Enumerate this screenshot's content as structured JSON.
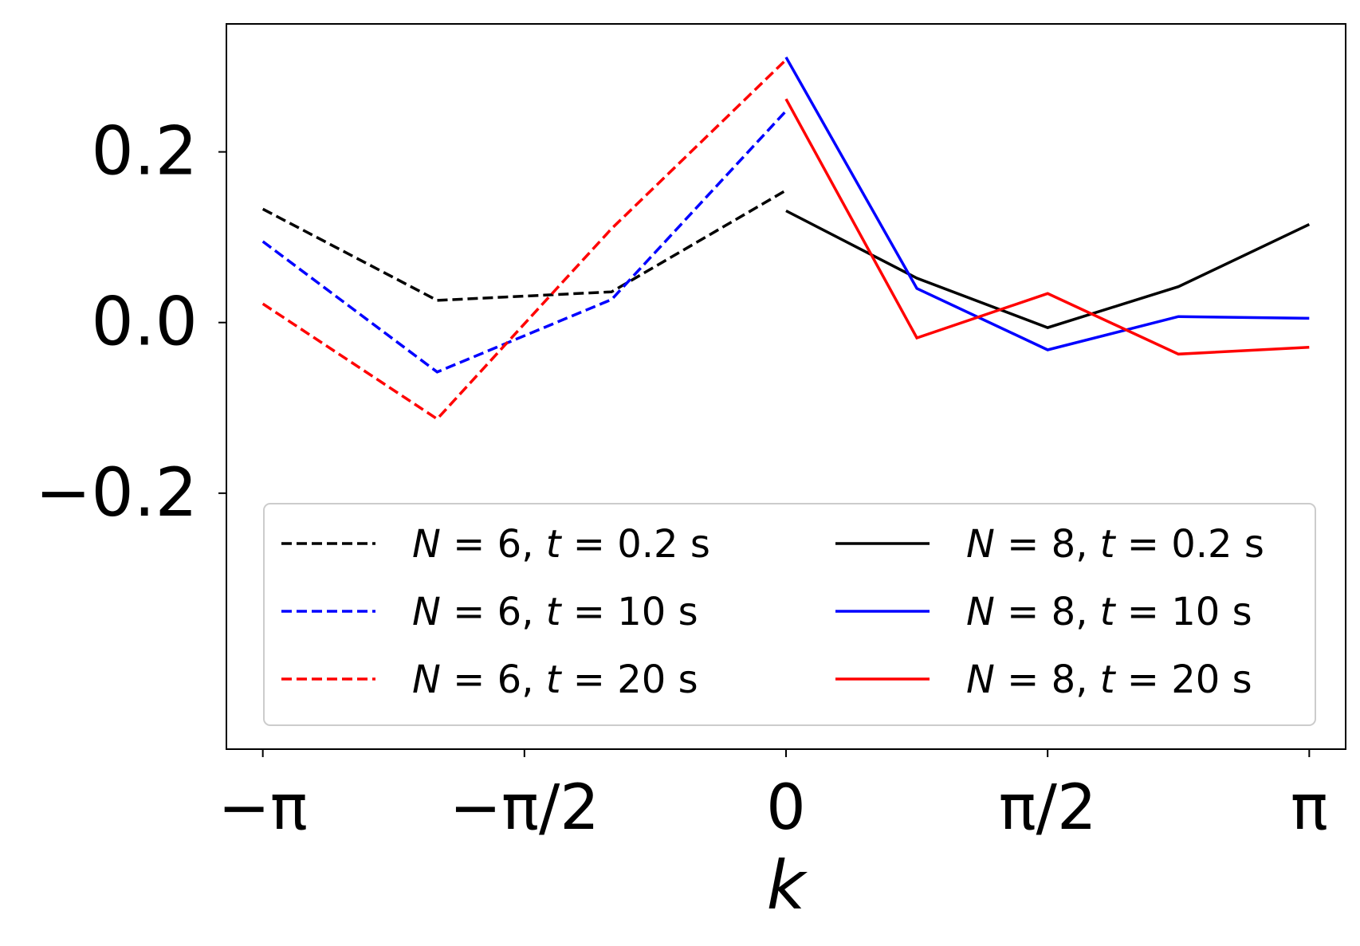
{
  "chart_data": {
    "type": "line",
    "title": "",
    "xlabel": "k",
    "ylabel": "",
    "xlim": [
      -3.3602,
      3.3602
    ],
    "ylim": [
      -0.5,
      0.35
    ],
    "x_ticks": [
      {
        "value": -3.14159,
        "label": "−π"
      },
      {
        "value": -1.5708,
        "label": "−π/2"
      },
      {
        "value": 0,
        "label": "0"
      },
      {
        "value": 1.5708,
        "label": "π/2"
      },
      {
        "value": 3.14159,
        "label": "π"
      }
    ],
    "y_ticks": [
      {
        "value": 0.2,
        "label": "0.2"
      },
      {
        "value": 0.0,
        "label": "0.0"
      },
      {
        "value": -0.2,
        "label": "−0.2"
      }
    ],
    "grid": false,
    "legend_position": "lower-center",
    "legend_columns": 2,
    "series": [
      {
        "name": "N = 6, t = 0.2 s",
        "legend_left": "N = 6, ",
        "legend_right": "t = 0.2 s",
        "color": "#000000",
        "style": "dashed",
        "x": [
          -3.14159,
          -2.0944,
          -1.0472,
          0
        ],
        "y": [
          0.133,
          0.026,
          0.036,
          0.155
        ]
      },
      {
        "name": "N = 6, t = 10 s",
        "legend_left": "N = 6, ",
        "legend_right": "t = 10 s",
        "color": "#0000ff",
        "style": "dashed",
        "x": [
          -3.14159,
          -2.0944,
          -1.0472,
          0
        ],
        "y": [
          0.095,
          -0.058,
          0.027,
          0.248
        ]
      },
      {
        "name": "N = 6, t = 20 s",
        "legend_left": "N = 6, ",
        "legend_right": "t = 20 s",
        "color": "#ff0000",
        "style": "dashed",
        "x": [
          -3.14159,
          -2.0944,
          -1.0472,
          0
        ],
        "y": [
          0.022,
          -0.113,
          0.11,
          0.308
        ]
      },
      {
        "name": "N = 8, t = 0.2 s",
        "legend_left": "N = 8, ",
        "legend_right": "t = 0.2 s",
        "color": "#000000",
        "style": "solid",
        "x": [
          0,
          0.7854,
          1.5708,
          2.3562,
          3.14159
        ],
        "y": [
          0.131,
          0.052,
          -0.006,
          0.042,
          0.115
        ]
      },
      {
        "name": "N = 8, t = 10 s",
        "legend_left": "N = 8, ",
        "legend_right": "t = 10 s",
        "color": "#0000ff",
        "style": "solid",
        "x": [
          0,
          0.7854,
          1.5708,
          2.3562,
          3.14159
        ],
        "y": [
          0.311,
          0.04,
          -0.032,
          0.007,
          0.005
        ]
      },
      {
        "name": "N = 8, t = 20 s",
        "legend_left": "N = 8, ",
        "legend_right": "t = 20 s",
        "color": "#ff0000",
        "style": "solid",
        "x": [
          0,
          0.7854,
          1.5708,
          2.3562,
          3.14159
        ],
        "y": [
          0.262,
          -0.018,
          0.034,
          -0.037,
          -0.029
        ]
      }
    ]
  }
}
